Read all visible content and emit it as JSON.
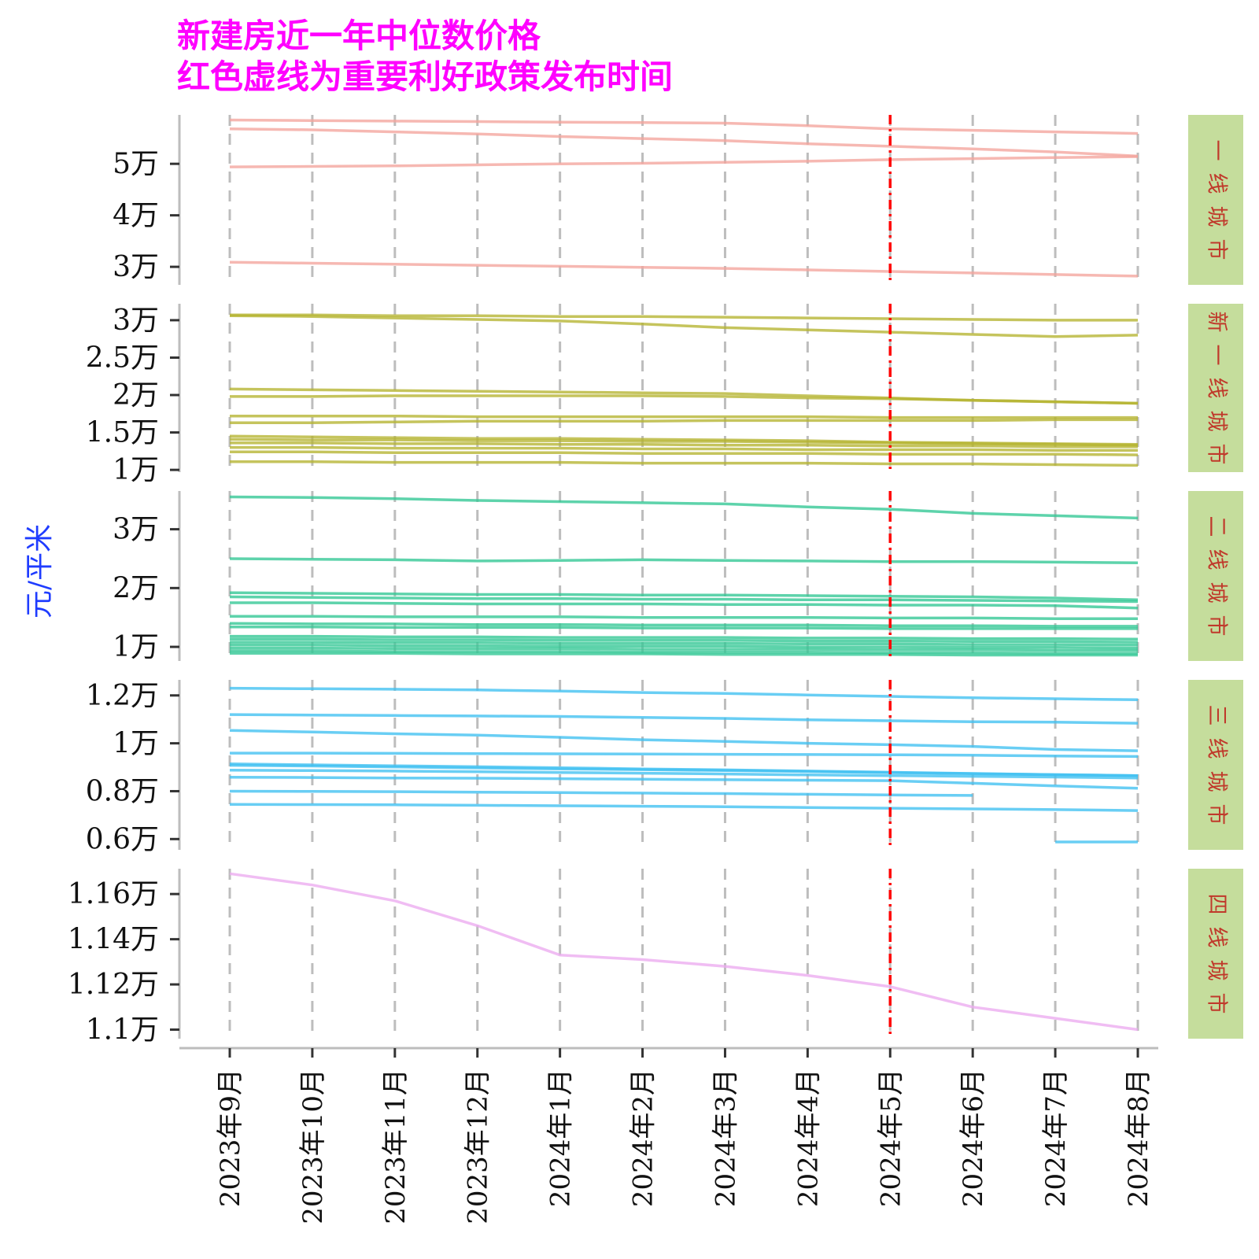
{
  "title": {
    "line1": "新建房近一年中位数价格",
    "line2": "红色虚线为重要利好政策发布时间"
  },
  "ylabel": "元/平米",
  "colors": {
    "panel_1": "#f4a49c",
    "panel_2": "#b5b430",
    "panel_3": "#31c794",
    "panel_4": "#3fc0f1",
    "panel_5": "#ecaaf0",
    "strip_bg": "#c5dd9c",
    "policy_line": "#ff0000",
    "grid": "#bdbdbd"
  },
  "chart_data": {
    "type": "line",
    "x": [
      "2023年9月",
      "2023年10月",
      "2023年11月",
      "2023年12月",
      "2024年1月",
      "2024年2月",
      "2024年3月",
      "2024年4月",
      "2024年5月",
      "2024年6月",
      "2024年7月",
      "2024年8月"
    ],
    "policy_date": "2024年5月",
    "policy_line_style": "red dash-dot vertical line",
    "grid": "vertical dashed gridlines at each month",
    "panels": [
      {
        "strip": "一线城市",
        "ylim": [
          26500,
          59500
        ],
        "ticks": [
          {
            "value": 30000,
            "label": "3万"
          },
          {
            "value": 40000,
            "label": "4万"
          },
          {
            "value": 50000,
            "label": "5万"
          }
        ],
        "series": [
          {
            "values": [
              58500,
              58400,
              58300,
              58200,
              58100,
              58000,
              57900,
              57400,
              56800,
              56500,
              56200,
              55900
            ]
          },
          {
            "values": [
              56800,
              56600,
              56200,
              55800,
              55300,
              54900,
              54500,
              53900,
              53400,
              52900,
              52300,
              51500
            ]
          },
          {
            "values": [
              49400,
              49500,
              49600,
              49800,
              50000,
              50100,
              50300,
              50500,
              50800,
              51000,
              51200,
              51400
            ]
          },
          {
            "values": [
              30900,
              30700,
              30500,
              30300,
              30100,
              29900,
              29700,
              29400,
              29100,
              28800,
              28500,
              28200
            ]
          }
        ]
      },
      {
        "strip": "新一线城市",
        "ylim": [
          9700,
          32200
        ],
        "ticks": [
          {
            "value": 10000,
            "label": "1万"
          },
          {
            "value": 15000,
            "label": "1.5万"
          },
          {
            "value": 20000,
            "label": "2万"
          },
          {
            "value": 25000,
            "label": "2.5万"
          },
          {
            "value": 30000,
            "label": "3万"
          }
        ],
        "series": [
          {
            "values": [
              30700,
              30700,
              30600,
              30600,
              30500,
              30500,
              30400,
              30300,
              30200,
              30100,
              30000,
              30000
            ]
          },
          {
            "values": [
              30600,
              30500,
              30300,
              30100,
              29900,
              29500,
              29000,
              28700,
              28400,
              28100,
              27800,
              28000
            ]
          },
          {
            "values": [
              20800,
              20700,
              20600,
              20500,
              20400,
              20300,
              20200,
              19900,
              19600,
              19300,
              19100,
              18900
            ]
          },
          {
            "values": [
              19800,
              19800,
              19900,
              19900,
              19900,
              19900,
              19800,
              19600,
              19500,
              19300,
              19100,
              18900
            ]
          },
          {
            "values": [
              17200,
              17200,
              17200,
              17100,
              17100,
              17100,
              17100,
              17100,
              17000,
              17000,
              17000,
              17000
            ]
          },
          {
            "values": [
              16300,
              16300,
              16400,
              16500,
              16500,
              16500,
              16600,
              16600,
              16600,
              16600,
              16700,
              16700
            ]
          },
          {
            "values": [
              14500,
              14400,
              14300,
              14200,
              14200,
              14100,
              14000,
              13900,
              13700,
              13600,
              13500,
              13400
            ]
          },
          {
            "values": [
              14100,
              14000,
              14000,
              13900,
              13900,
              13800,
              13800,
              13700,
              13600,
              13500,
              13400,
              13300
            ]
          },
          {
            "values": [
              13600,
              13600,
              13500,
              13500,
              13400,
              13400,
              13300,
              13300,
              13200,
              13200,
              13100,
              13100
            ]
          },
          {
            "values": [
              13000,
              13000,
              12900,
              12900,
              12900,
              12800,
              12800,
              12700,
              12700,
              12700,
              12600,
              12600
            ]
          },
          {
            "values": [
              12400,
              12400,
              12300,
              12300,
              12300,
              12200,
              12200,
              12200,
              12100,
              12100,
              12100,
              12000
            ]
          },
          {
            "values": [
              11100,
              11100,
              11000,
              11000,
              11000,
              10900,
              10900,
              10900,
              10800,
              10800,
              10700,
              10600
            ]
          }
        ]
      },
      {
        "strip": "二线城市",
        "ylim": [
          7600,
          36500
        ],
        "ticks": [
          {
            "value": 10000,
            "label": "1万"
          },
          {
            "value": 20000,
            "label": "2万"
          },
          {
            "value": 30000,
            "label": "3万"
          }
        ],
        "series": [
          {
            "values": [
              35500,
              35400,
              35200,
              34900,
              34700,
              34500,
              34300,
              33800,
              33400,
              32700,
              32300,
              31900
            ]
          },
          {
            "values": [
              25000,
              24900,
              24800,
              24600,
              24700,
              24800,
              24700,
              24600,
              24500,
              24500,
              24400,
              24300
            ]
          },
          {
            "values": [
              19200,
              19100,
              19000,
              18900,
              18900,
              18800,
              18800,
              18700,
              18600,
              18500,
              18300,
              18000
            ]
          },
          {
            "values": [
              18500,
              18400,
              18300,
              18200,
              18200,
              18100,
              18100,
              18000,
              18000,
              17900,
              17800,
              17700
            ]
          },
          {
            "values": [
              17500,
              17500,
              17400,
              17300,
              17300,
              17300,
              17200,
              17200,
              17100,
              17100,
              17000,
              16600
            ]
          },
          {
            "values": [
              15200,
              15200,
              15100,
              15100,
              15100,
              15000,
              15000,
              15000,
              14900,
              14900,
              14800,
              14800
            ]
          },
          {
            "values": [
              14000,
              13900,
              13900,
              13800,
              13800,
              13700,
              13700,
              13700,
              13600,
              13600,
              13500,
              13500
            ]
          },
          {
            "values": [
              13400,
              13400,
              13300,
              13300,
              13300,
              13200,
              13200,
              13200,
              13100,
              13100,
              13100,
              13100
            ]
          },
          {
            "values": [
              11800,
              11800,
              11700,
              11700,
              11600,
              11600,
              11600,
              11500,
              11500,
              11400,
              11400,
              11300
            ]
          },
          {
            "values": [
              11300,
              11300,
              11200,
              11200,
              11100,
              11100,
              11100,
              11000,
              11000,
              10900,
              10900,
              10800
            ]
          },
          {
            "values": [
              10800,
              10800,
              10700,
              10700,
              10600,
              10600,
              10600,
              10500,
              10500,
              10400,
              10400,
              10300
            ]
          },
          {
            "values": [
              10300,
              10300,
              10200,
              10200,
              10100,
              10100,
              10100,
              10000,
              10000,
              9900,
              9900,
              9800
            ]
          },
          {
            "values": [
              9800,
              9800,
              9700,
              9700,
              9700,
              9600,
              9600,
              9600,
              9500,
              9500,
              9400,
              9400
            ]
          },
          {
            "values": [
              9300,
              9300,
              9200,
              9200,
              9200,
              9100,
              9100,
              9100,
              9000,
              9000,
              8900,
              8900
            ]
          },
          {
            "values": [
              8900,
              8900,
              8900,
              8800,
              8800,
              8800,
              8700,
              8700,
              8700,
              8600,
              8600,
              8600
            ]
          }
        ]
      },
      {
        "strip": "三线城市",
        "ylim": [
          5550,
          12650
        ],
        "ticks": [
          {
            "value": 6000,
            "label": "0.6万"
          },
          {
            "value": 8000,
            "label": "0.8万"
          },
          {
            "value": 10000,
            "label": "1万"
          },
          {
            "value": 12000,
            "label": "1.2万"
          }
        ],
        "series": [
          {
            "values": [
              12300,
              12280,
              12260,
              12230,
              12180,
              12120,
              12080,
              12020,
              11960,
              11900,
              11860,
              11820
            ]
          },
          {
            "values": [
              11200,
              11180,
              11160,
              11140,
              11120,
              11080,
              11040,
              10980,
              10940,
              10900,
              10880,
              10840
            ]
          },
          {
            "values": [
              10540,
              10470,
              10400,
              10340,
              10250,
              10150,
              10080,
              10000,
              9940,
              9870,
              9740,
              9690
            ]
          },
          {
            "values": [
              9590,
              9590,
              9580,
              9570,
              9560,
              9550,
              9540,
              9530,
              9520,
              9500,
              9470,
              9450
            ]
          },
          {
            "values": [
              9140,
              9100,
              9060,
              9020,
              8980,
              8930,
              8890,
              8840,
              8790,
              8740,
              8690,
              8650
            ]
          },
          {
            "values": [
              9080,
              9050,
              9010,
              8970,
              8930,
              8900,
              8860,
              8820,
              8770,
              8730,
              8690,
              8650
            ]
          },
          {
            "values": [
              8880,
              8860,
              8840,
              8810,
              8780,
              8750,
              8720,
              8680,
              8650,
              8620,
              8590,
              8550
            ]
          },
          {
            "values": [
              8580,
              8570,
              8550,
              8540,
              8520,
              8500,
              8480,
              8460,
              8440,
              8330,
              8220,
              8120
            ]
          },
          {
            "values": [
              8000,
              7990,
              7980,
              7960,
              7940,
              7920,
              7900,
              7870,
              7840,
              7820,
              null,
              null
            ]
          },
          {
            "values": [
              7450,
              7440,
              7430,
              7410,
              7390,
              7370,
              7350,
              7320,
              7290,
              7260,
              7230,
              7190
            ]
          },
          {
            "values": [
              null,
              null,
              null,
              null,
              null,
              null,
              null,
              null,
              null,
              null,
              5880,
              5880
            ]
          }
        ]
      },
      {
        "strip": "四线城市",
        "ylim": [
          10960,
          11712
        ],
        "ticks": [
          {
            "value": 11000,
            "label": "1.1万"
          },
          {
            "value": 11200,
            "label": "1.12万"
          },
          {
            "value": 11400,
            "label": "1.14万"
          },
          {
            "value": 11600,
            "label": "1.16万"
          }
        ],
        "series": [
          {
            "values": [
              11690,
              11640,
              11570,
              11460,
              11330,
              11310,
              11280,
              11240,
              11190,
              11100,
              11050,
              11000
            ]
          }
        ]
      }
    ]
  }
}
